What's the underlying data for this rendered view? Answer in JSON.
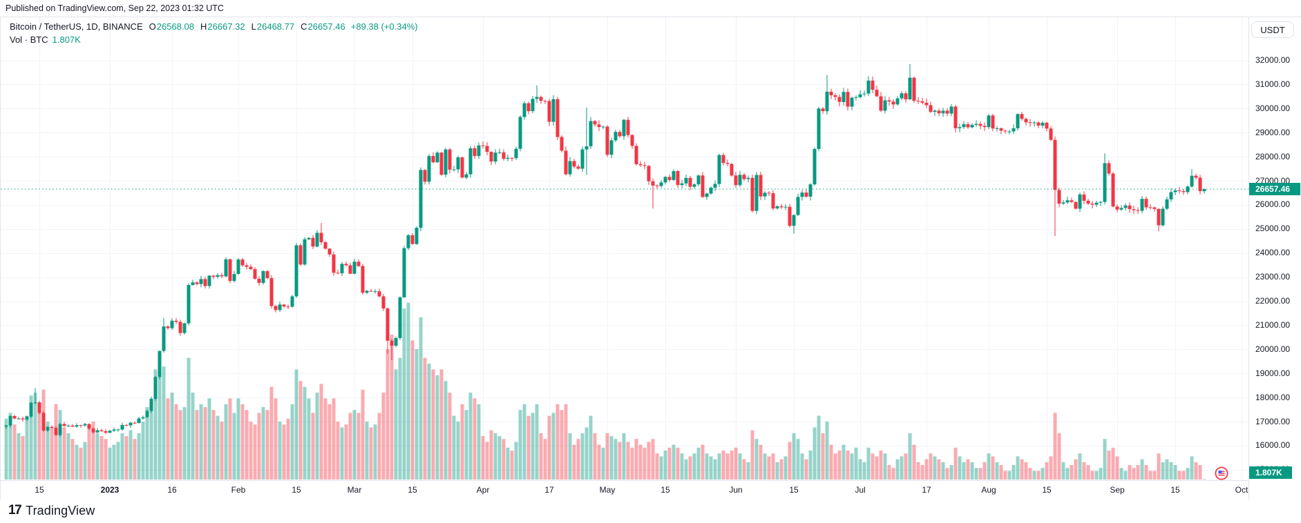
{
  "published_bar": {
    "text": "Published on TradingView.com, Sep 22, 2023 01:32 UTC"
  },
  "legend": {
    "symbol_title": "Bitcoin / TetherUS, 1D, BINANCE",
    "ohlc": [
      {
        "label": "O",
        "value": "26568.08"
      },
      {
        "label": "H",
        "value": "26667.32"
      },
      {
        "label": "L",
        "value": "26468.77"
      },
      {
        "label": "C",
        "value": "26657.46"
      }
    ],
    "change": "+89.38 (+0.34%)",
    "volume_row": {
      "label": "Vol · BTC",
      "value": "1.807K"
    }
  },
  "price_axis": {
    "currency_button": "USDT",
    "ticks": [
      "32000.00",
      "31000.00",
      "30000.00",
      "29000.00",
      "28000.00",
      "27000.00",
      "26000.00",
      "25000.00",
      "24000.00",
      "23000.00",
      "22000.00",
      "21000.00",
      "20000.00",
      "19000.00",
      "18000.00",
      "17000.00",
      "16000.00",
      "15000.00"
    ],
    "last_price_label": "26657.46",
    "last_volume_label": "1.807K"
  },
  "time_axis": {
    "labels": [
      {
        "text": "15",
        "day": 8,
        "bold": false
      },
      {
        "text": "2023",
        "day": 25,
        "bold": true
      },
      {
        "text": "16",
        "day": 40,
        "bold": false
      },
      {
        "text": "Feb",
        "day": 56,
        "bold": false
      },
      {
        "text": "15",
        "day": 70,
        "bold": false
      },
      {
        "text": "Mar",
        "day": 84,
        "bold": false
      },
      {
        "text": "15",
        "day": 98,
        "bold": false
      },
      {
        "text": "Apr",
        "day": 115,
        "bold": false
      },
      {
        "text": "17",
        "day": 131,
        "bold": false
      },
      {
        "text": "May",
        "day": 145,
        "bold": false
      },
      {
        "text": "15",
        "day": 159,
        "bold": false
      },
      {
        "text": "Jun",
        "day": 176,
        "bold": false
      },
      {
        "text": "15",
        "day": 190,
        "bold": false
      },
      {
        "text": "Jul",
        "day": 206,
        "bold": false
      },
      {
        "text": "17",
        "day": 222,
        "bold": false
      },
      {
        "text": "Aug",
        "day": 237,
        "bold": false
      },
      {
        "text": "15",
        "day": 251,
        "bold": false
      },
      {
        "text": "Sep",
        "day": 268,
        "bold": false
      },
      {
        "text": "15",
        "day": 282,
        "bold": false
      },
      {
        "text": "Oct",
        "day": 298,
        "bold": false
      }
    ]
  },
  "footer": {
    "logo_glyph": "17",
    "logo_text": "TradingView"
  },
  "icons": {
    "economic_event": "us-flag-event-marker"
  },
  "colors": {
    "up": "#089981",
    "down": "#f23645",
    "vol_up": "rgba(8,153,129,0.42)",
    "vol_down": "rgba(242,54,69,0.42)",
    "grid": "#f0f3fa",
    "axis_text": "#131722",
    "badge_bg": "#089981",
    "last_price_line": "#089981",
    "border": "#e0e3eb"
  },
  "chart_data": {
    "type": "candlestick",
    "title": "Bitcoin / TetherUS, 1D, BINANCE",
    "interval": "1D",
    "start_date": "2022-12-07",
    "end_date": "2023-09-22",
    "grid": true,
    "legend_position": "top-left",
    "y_axis": {
      "min": 15000,
      "max": 32400,
      "tick_step": 1000,
      "ticks": [
        15000,
        16000,
        17000,
        18000,
        19000,
        20000,
        21000,
        22000,
        23000,
        24000,
        25000,
        26000,
        27000,
        28000,
        29000,
        30000,
        31000,
        32000
      ]
    },
    "x_tick_labels": [
      "15",
      "2023",
      "16",
      "Feb",
      "15",
      "Mar",
      "15",
      "Apr",
      "17",
      "May",
      "15",
      "Jun",
      "15",
      "Jul",
      "17",
      "Aug",
      "15",
      "Sep",
      "15",
      "Oct"
    ],
    "last_candle": {
      "open": 26568.08,
      "high": 26667.32,
      "low": 26468.77,
      "close": 26657.46,
      "change": 89.38,
      "change_pct": 0.34,
      "volume_kbtc": 1.807
    },
    "first_open": 16790,
    "closes": [
      16840,
      17230,
      17130,
      17130,
      17090,
      17210,
      17780,
      17800,
      17360,
      16630,
      16780,
      16740,
      16440,
      16900,
      16820,
      16830,
      16790,
      16850,
      16840,
      16900,
      16710,
      16550,
      16640,
      16600,
      16540,
      16620,
      16670,
      16670,
      16860,
      16840,
      16950,
      16940,
      17130,
      17180,
      17440,
      17940,
      18850,
      19930,
      20950,
      20880,
      21190,
      21140,
      20680,
      21080,
      22670,
      22780,
      22710,
      22920,
      22630,
      23060,
      23010,
      23080,
      23030,
      23740,
      22840,
      23130,
      23730,
      23490,
      23430,
      23330,
      22930,
      22760,
      23250,
      22960,
      21800,
      21630,
      21860,
      21780,
      21770,
      22200,
      24320,
      23520,
      24570,
      24630,
      24270,
      24840,
      24450,
      24180,
      23940,
      23180,
      23160,
      23550,
      23490,
      23140,
      23640,
      23460,
      22350,
      22430,
      22410,
      22410,
      22200,
      21700,
      20360,
      20150,
      20470,
      22160,
      24200,
      24740,
      24375,
      25050,
      27450,
      26960,
      28030,
      27770,
      28170,
      27250,
      28300,
      27460,
      27470,
      27970,
      27130,
      27270,
      28350,
      28030,
      28470,
      28450,
      28200,
      27800,
      28170,
      28180,
      27910,
      27950,
      27940,
      28330,
      29650,
      30220,
      29890,
      30400,
      30480,
      30320,
      30310,
      29450,
      30390,
      28820,
      28250,
      27270,
      27820,
      27590,
      27500,
      28300,
      28430,
      29480,
      29340,
      29230,
      29250,
      28080,
      28680,
      29030,
      28850,
      29530,
      28900,
      28450,
      27690,
      27650,
      27620,
      26980,
      26800,
      26780,
      26930,
      27160,
      27030,
      27400,
      26820,
      26890,
      27120,
      26750,
      26850,
      27220,
      26330,
      26470,
      26710,
      26870,
      28070,
      27740,
      27700,
      27220,
      26820,
      27250,
      27070,
      27120,
      25750,
      27240,
      26350,
      26500,
      26480,
      25850,
      25940,
      25900,
      25920,
      25130,
      25580,
      26330,
      26510,
      26340,
      26850,
      28320,
      30000,
      29890,
      30700,
      30550,
      30480,
      30270,
      30690,
      30080,
      30450,
      30470,
      30590,
      30620,
      31160,
      30780,
      30510,
      29910,
      30340,
      30290,
      30170,
      30420,
      30630,
      30380,
      31280,
      30320,
      30300,
      30240,
      30140,
      29860,
      29910,
      29800,
      29910,
      29790,
      30080,
      29180,
      29230,
      29350,
      29220,
      29320,
      29360,
      29280,
      29230,
      29710,
      29170,
      29180,
      29080,
      29050,
      29050,
      29180,
      29770,
      29570,
      29430,
      29400,
      29420,
      29290,
      29410,
      29170,
      28700,
      26620,
      26050,
      26100,
      26190,
      26120,
      25840,
      26430,
      26170,
      26050,
      26010,
      26090,
      26120,
      27730,
      27300,
      25930,
      25800,
      25870,
      25970,
      25820,
      25780,
      25750,
      26250,
      25900,
      25890,
      25830,
      25150,
      25840,
      26230,
      26530,
      26600,
      26570,
      26530,
      26760,
      27210,
      27130,
      26570,
      26657.46
    ],
    "volumes_kbtc": [
      210,
      230,
      190,
      160,
      150,
      220,
      290,
      300,
      260,
      310,
      200,
      180,
      260,
      240,
      180,
      160,
      140,
      120,
      110,
      130,
      190,
      200,
      160,
      150,
      140,
      110,
      120,
      130,
      160,
      150,
      170,
      140,
      160,
      200,
      250,
      280,
      380,
      420,
      390,
      280,
      300,
      260,
      240,
      250,
      420,
      300,
      240,
      260,
      250,
      280,
      240,
      220,
      200,
      260,
      280,
      230,
      280,
      260,
      240,
      200,
      190,
      230,
      250,
      240,
      320,
      280,
      200,
      190,
      210,
      260,
      380,
      340,
      320,
      280,
      230,
      300,
      330,
      280,
      260,
      280,
      200,
      180,
      190,
      230,
      240,
      230,
      310,
      200,
      180,
      190,
      230,
      300,
      450,
      500,
      380,
      420,
      590,
      610,
      480,
      450,
      560,
      420,
      400,
      380,
      360,
      380,
      340,
      300,
      220,
      200,
      260,
      240,
      300,
      280,
      260,
      150,
      130,
      170,
      160,
      150,
      140,
      110,
      100,
      130,
      240,
      260,
      220,
      230,
      260,
      160,
      140,
      220,
      230,
      260,
      240,
      260,
      160,
      120,
      140,
      160,
      180,
      220,
      160,
      120,
      110,
      160,
      150,
      140,
      130,
      160,
      130,
      110,
      140,
      120,
      110,
      130,
      140,
      90,
      80,
      100,
      110,
      120,
      110,
      90,
      70,
      80,
      90,
      110,
      120,
      90,
      80,
      70,
      90,
      100,
      90,
      100,
      110,
      90,
      70,
      60,
      170,
      140,
      120,
      90,
      80,
      90,
      60,
      70,
      80,
      130,
      160,
      140,
      90,
      70,
      100,
      180,
      220,
      160,
      200,
      120,
      90,
      100,
      120,
      100,
      90,
      110,
      70,
      60,
      110,
      90,
      80,
      100,
      90,
      50,
      40,
      70,
      80,
      90,
      160,
      120,
      60,
      50,
      70,
      90,
      80,
      70,
      60,
      40,
      50,
      110,
      80,
      60,
      70,
      60,
      40,
      40,
      60,
      90,
      80,
      60,
      50,
      30,
      30,
      50,
      80,
      70,
      60,
      40,
      30,
      30,
      40,
      60,
      80,
      230,
      160,
      60,
      40,
      50,
      70,
      90,
      60,
      50,
      30,
      30,
      40,
      140,
      100,
      110,
      80,
      40,
      30,
      50,
      40,
      50,
      70,
      50,
      30,
      30,
      90,
      60,
      70,
      60,
      50,
      30,
      30,
      40,
      80,
      60,
      50,
      1.807
    ],
    "extremes": {
      "7": [
        18390,
        null
      ],
      "38": [
        21300,
        null
      ],
      "76": [
        25250,
        null
      ],
      "92": [
        null,
        19800
      ],
      "93": [
        null,
        19550
      ],
      "128": [
        30960,
        null
      ],
      "140": [
        30040,
        27250
      ],
      "156": [
        null,
        25850
      ],
      "190": [
        null,
        24800
      ],
      "198": [
        31390,
        null
      ],
      "218": [
        31850,
        null
      ],
      "253": [
        null,
        24700
      ],
      "265": [
        28140,
        null
      ],
      "278": [
        null,
        24900
      ],
      "286": [
        27480,
        null
      ]
    }
  }
}
